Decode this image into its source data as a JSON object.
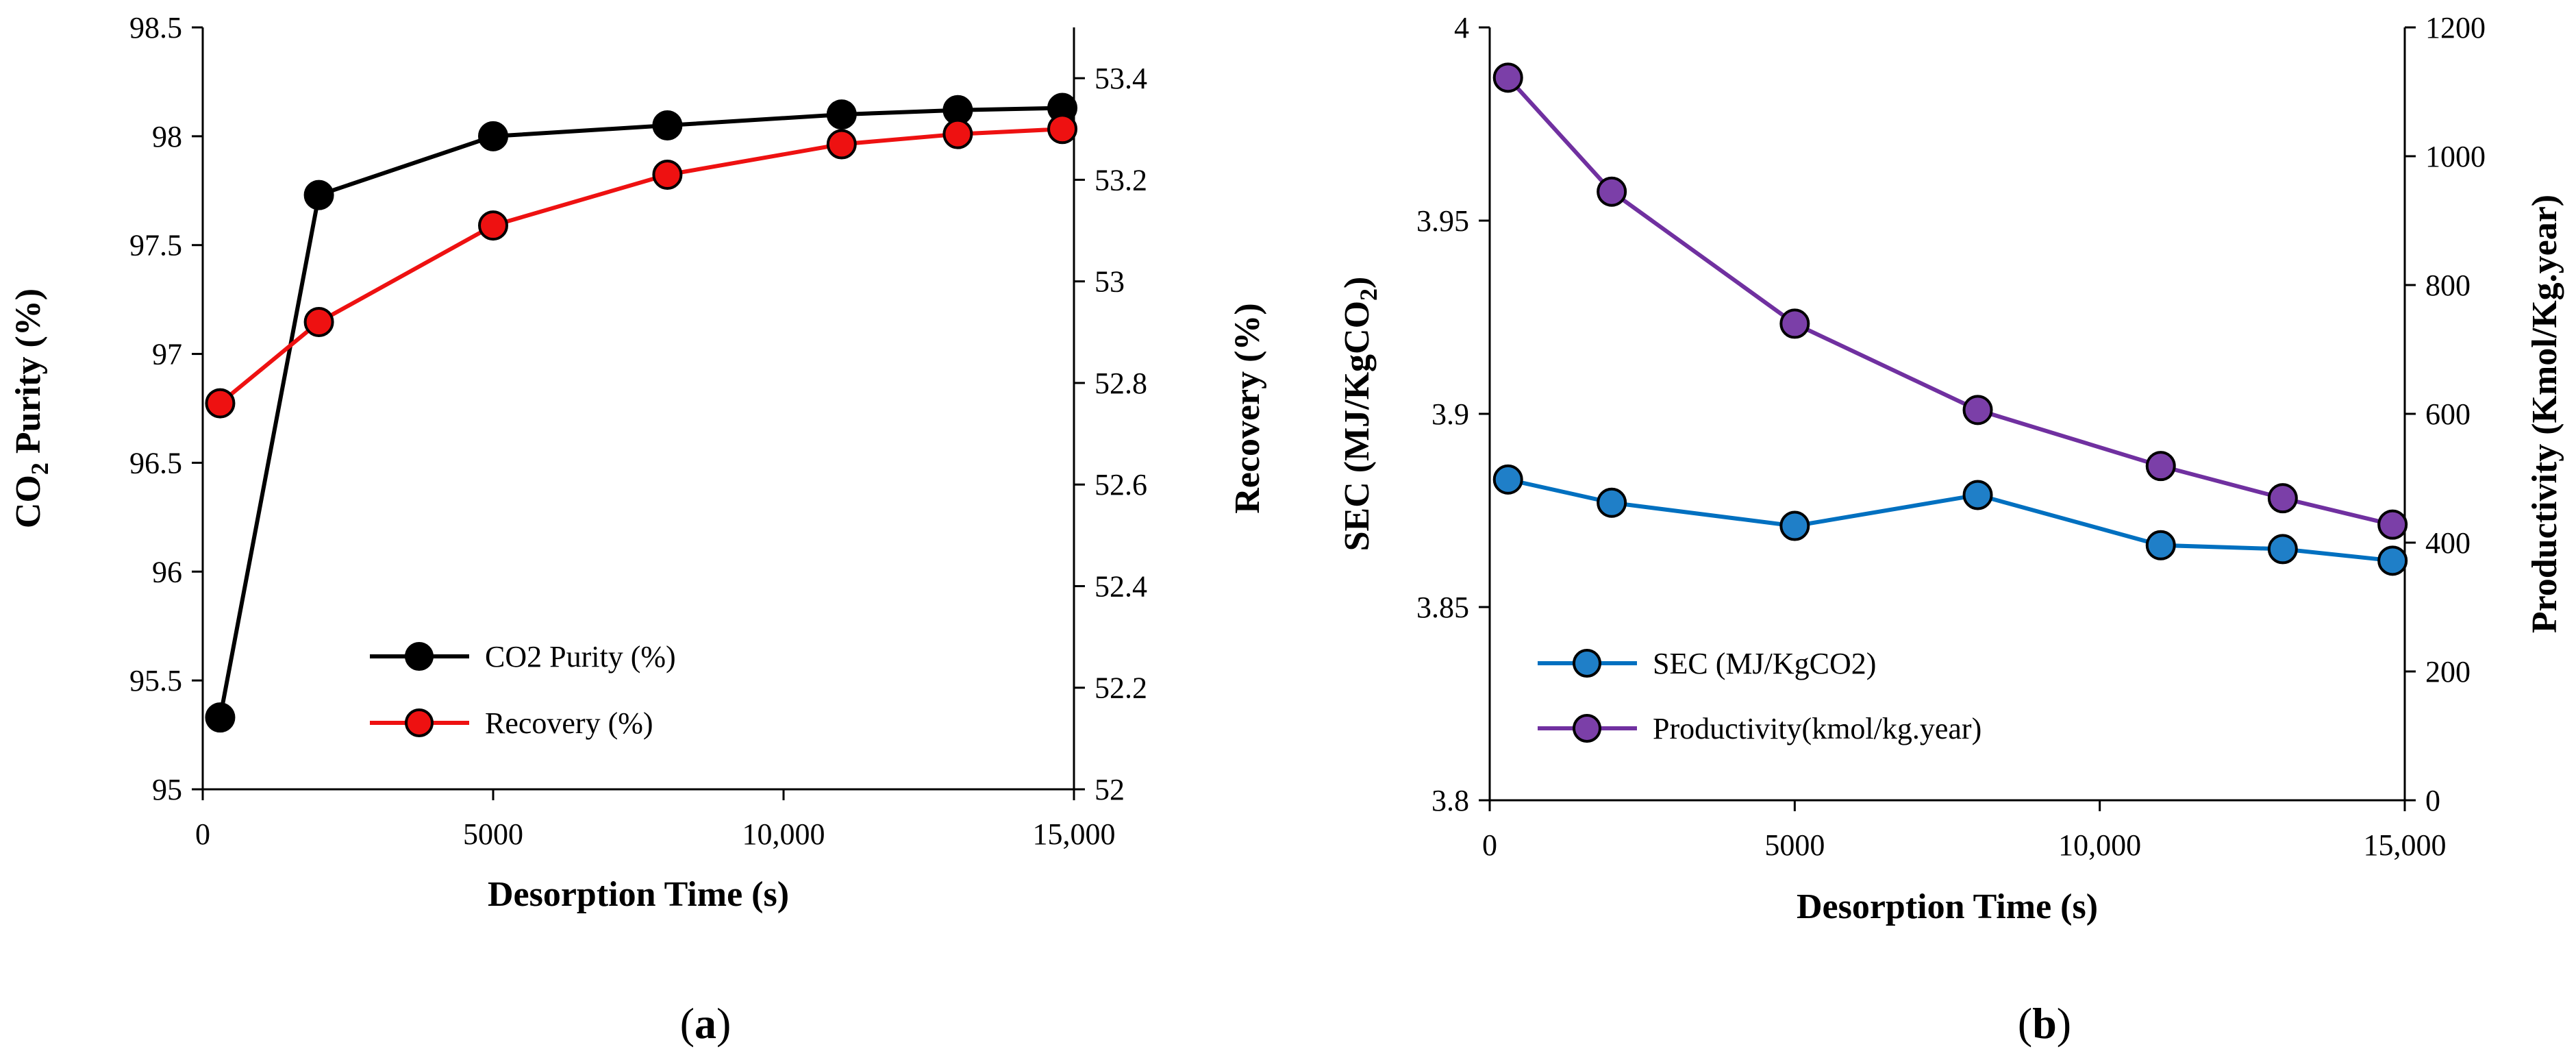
{
  "chart_data": [
    {
      "id": "a",
      "type": "line",
      "caption": {
        "open": "(",
        "letter": "a",
        "close": ")"
      },
      "xlabel": "Desorption Time (s)",
      "ylabel_left": {
        "pre": "CO",
        "sub": "2",
        "post": " Purity (%)"
      },
      "ylabel_right": "Recovery (%)",
      "xlim": [
        0,
        15000
      ],
      "xticks": [
        0,
        5000,
        10000,
        15000
      ],
      "xtick_labels": [
        "0",
        "5000",
        "10,000",
        "15,000"
      ],
      "ylim_left": [
        95,
        98.5
      ],
      "yticks_left": [
        95,
        95.5,
        96,
        96.5,
        97,
        97.5,
        98,
        98.5
      ],
      "yticks_left_labels": [
        "95",
        "95.5",
        "96",
        "96.5",
        "97",
        "97.5",
        "98",
        "98.5"
      ],
      "ylim_right": [
        52,
        53.5
      ],
      "yticks_right": [
        52,
        52.2,
        52.4,
        52.6,
        52.8,
        53,
        53.2,
        53.4
      ],
      "yticks_right_labels": [
        "52",
        "52.2",
        "52.4",
        "52.6",
        "52.8",
        "53",
        "53.2",
        "53.4"
      ],
      "series": [
        {
          "name": "CO2 Purity (%)",
          "axis": "left",
          "line_color": "#000000",
          "marker_color": "#000000",
          "x": [
            300,
            2000,
            5000,
            8000,
            11000,
            13000,
            14800
          ],
          "y": [
            95.33,
            97.73,
            98.0,
            98.05,
            98.1,
            98.12,
            98.13
          ]
        },
        {
          "name": "Recovery (%)",
          "axis": "right",
          "line_color": "#ee1111",
          "marker_color": "#ee1111",
          "x": [
            300,
            2000,
            5000,
            8000,
            11000,
            13000,
            14800
          ],
          "y": [
            52.76,
            52.92,
            53.11,
            53.21,
            53.27,
            53.29,
            53.3
          ]
        }
      ],
      "legend_position": "bottom-right"
    },
    {
      "id": "b",
      "type": "line",
      "caption": {
        "open": "(",
        "letter": "b",
        "close": ")"
      },
      "xlabel": "Desorption Time (s)",
      "ylabel_left": {
        "pre": "SEC (MJ/KgCO",
        "sub": "2",
        "post": ")"
      },
      "ylabel_right": "Productivity (Kmol/Kg.year)",
      "xlim": [
        0,
        15000
      ],
      "xticks": [
        0,
        5000,
        10000,
        15000
      ],
      "xtick_labels": [
        "0",
        "5000",
        "10,000",
        "15,000"
      ],
      "ylim_left": [
        3.8,
        4.0
      ],
      "yticks_left": [
        3.8,
        3.85,
        3.9,
        3.95,
        4.0
      ],
      "yticks_left_labels": [
        "3.8",
        "3.85",
        "3.9",
        "3.95",
        "4"
      ],
      "ylim_right": [
        0,
        1200
      ],
      "yticks_right": [
        0,
        200,
        400,
        600,
        800,
        1000,
        1200
      ],
      "yticks_right_labels": [
        "0",
        "200",
        "400",
        "600",
        "800",
        "1000",
        "1200"
      ],
      "series": [
        {
          "name": "SEC (MJ/KgCO2)",
          "axis": "left",
          "line_color": "#0070c0",
          "marker_color": "#1f7fc8",
          "x": [
            300,
            2000,
            5000,
            8000,
            11000,
            13000,
            14800
          ],
          "y": [
            3.883,
            3.877,
            3.871,
            3.879,
            3.866,
            3.865,
            3.862
          ]
        },
        {
          "name": "Productivity(kmol/kg.year)",
          "axis": "right",
          "line_color": "#7030a0",
          "marker_color": "#7b3fa8",
          "x": [
            300,
            2000,
            5000,
            8000,
            11000,
            13000,
            14800
          ],
          "y": [
            1122,
            945,
            740,
            606,
            519,
            469,
            428
          ]
        }
      ],
      "legend_position": "bottom-right"
    }
  ]
}
